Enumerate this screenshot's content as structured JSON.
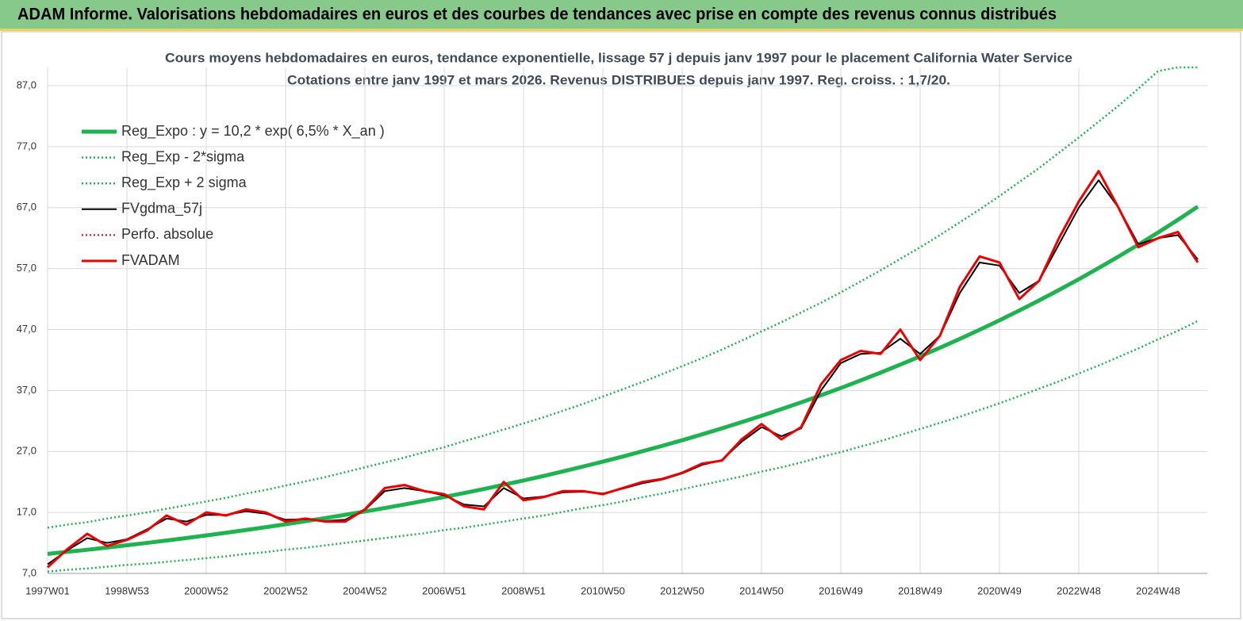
{
  "banner": {
    "title": "ADAM Informe. Valorisations hebdomadaires en euros et des courbes de tendances avec prise en compte des revenus connus distribués"
  },
  "chart_data": {
    "type": "line",
    "title": "Cours moyens hebdomadaires en euros, tendance exponentielle, lissage 57 j depuis janv 1997 pour le placement California Water Service",
    "subtitle": "Cotations entre janv 1997 et mars 2026. Revenus DISTRIBUES depuis janv 1997. Reg. croiss. : 1,7/20.",
    "categories": [
      "1997W01",
      null,
      null,
      null,
      "1998W53",
      null,
      null,
      null,
      "2000W52",
      null,
      null,
      null,
      "2002W52",
      null,
      null,
      null,
      "2004W52",
      null,
      null,
      null,
      "2006W51",
      null,
      null,
      null,
      "2008W51",
      null,
      null,
      null,
      "2010W50",
      null,
      null,
      null,
      "2012W50",
      null,
      null,
      null,
      "2014W50",
      null,
      null,
      null,
      "2016W49",
      null,
      null,
      null,
      "2018W49",
      null,
      null,
      null,
      "2020W49",
      null,
      null,
      null,
      "2022W48",
      null,
      null,
      null,
      "2024W48",
      null,
      null
    ],
    "ylim": [
      7,
      90
    ],
    "yticks": [
      {
        "value": 7,
        "label": "7,0"
      },
      {
        "value": 17,
        "label": "17,0"
      },
      {
        "value": 27,
        "label": "27,0"
      },
      {
        "value": 37,
        "label": "37,0"
      },
      {
        "value": 47,
        "label": "47,0"
      },
      {
        "value": 57,
        "label": "57,0"
      },
      {
        "value": 67,
        "label": "67,0"
      },
      {
        "value": 77,
        "label": "77,0"
      },
      {
        "value": 87,
        "label": "87,0"
      }
    ],
    "grid": true,
    "legend": "upper-left",
    "series": [
      {
        "name": "Reg_Expo : y = 10,2 * exp( 6,5% *  X_an )",
        "color": "#1db34f",
        "dash": "solid",
        "width": 5,
        "values": [
          10.2,
          10.54,
          10.88,
          11.24,
          11.62,
          12.0,
          12.4,
          12.81,
          13.23,
          13.67,
          14.12,
          14.58,
          15.07,
          15.56,
          16.08,
          16.61,
          17.16,
          17.72,
          18.31,
          18.91,
          19.54,
          20.18,
          20.85,
          21.54,
          22.25,
          22.98,
          23.74,
          24.53,
          25.34,
          26.17,
          27.04,
          27.93,
          28.85,
          29.81,
          30.79,
          31.81,
          32.86,
          33.94,
          35.06,
          36.22,
          37.42,
          38.65,
          39.93,
          41.25,
          42.61,
          44.02,
          45.47,
          46.97,
          48.52,
          50.13,
          51.78,
          53.49,
          55.26,
          57.09,
          58.97,
          60.92,
          62.93,
          65.01,
          67.16
        ]
      },
      {
        "name": "Reg_Exp - 2*sigma",
        "color": "#1db34f",
        "dash": "dotted",
        "width": 2.5,
        "values": [
          7.3,
          7.6,
          7.8,
          8.1,
          8.4,
          8.6,
          8.9,
          9.2,
          9.5,
          9.8,
          10.2,
          10.5,
          10.9,
          11.2,
          11.6,
          12.0,
          12.4,
          12.8,
          13.2,
          13.6,
          14.1,
          14.5,
          15.0,
          15.5,
          16.0,
          16.5,
          17.1,
          17.7,
          18.2,
          18.8,
          19.5,
          20.1,
          20.8,
          21.5,
          22.2,
          22.9,
          23.7,
          24.4,
          25.2,
          26.1,
          26.9,
          27.8,
          28.7,
          29.7,
          30.7,
          31.7,
          32.7,
          33.8,
          34.9,
          36.1,
          37.3,
          38.5,
          39.8,
          41.1,
          42.5,
          43.9,
          45.4,
          46.8,
          48.4
        ]
      },
      {
        "name": "Reg_Exp + 2 sigma",
        "color": "#1db34f",
        "dash": "dotted",
        "width": 2.5,
        "values": [
          14.5,
          15.0,
          15.4,
          16.0,
          16.5,
          17.0,
          17.6,
          18.2,
          18.8,
          19.4,
          20.1,
          20.7,
          21.4,
          22.1,
          22.8,
          23.6,
          24.4,
          25.2,
          26.0,
          26.9,
          27.7,
          28.7,
          29.6,
          30.6,
          31.6,
          32.6,
          33.7,
          34.8,
          36.0,
          37.2,
          38.4,
          39.7,
          41.0,
          42.3,
          43.7,
          45.2,
          46.7,
          48.2,
          49.8,
          51.4,
          53.1,
          54.9,
          56.7,
          58.6,
          60.5,
          62.5,
          64.6,
          66.7,
          68.9,
          71.2,
          73.5,
          76.0,
          78.5,
          81.1,
          83.7,
          86.5,
          89.4,
          90,
          90
        ]
      },
      {
        "name": "FVgdma_57j",
        "color": "#000000",
        "dash": "solid",
        "width": 2,
        "values": [
          8.5,
          10.8,
          12.8,
          12,
          12.6,
          14.2,
          16,
          15.5,
          16.6,
          16.6,
          17.2,
          16.8,
          15.8,
          15.9,
          15.6,
          15.8,
          17.4,
          20.5,
          21,
          20.5,
          19.8,
          18.3,
          18,
          21,
          19.3,
          19.6,
          20.3,
          20.4,
          20.1,
          20.9,
          21.8,
          22.4,
          23.4,
          24.8,
          25.6,
          28.6,
          31,
          29.5,
          30.8,
          37,
          41.5,
          43,
          43.2,
          45.5,
          43,
          46,
          53,
          58,
          57.5,
          53,
          55,
          61,
          67,
          71.5,
          67,
          61,
          62,
          62.5,
          58.5
        ]
      },
      {
        "name": "Perfo. absolue",
        "color": "#e00000",
        "dash": "dotted",
        "width": 2,
        "values": [
          null,
          null,
          null,
          null,
          null,
          null,
          null,
          null,
          null,
          null,
          null,
          null,
          null,
          null,
          null,
          null,
          null,
          null,
          null,
          null,
          null,
          null,
          null,
          null,
          null,
          null,
          null,
          null,
          null,
          null,
          null,
          null,
          null,
          null,
          null,
          null,
          null,
          null,
          null,
          null,
          null,
          null,
          null,
          null,
          null,
          null,
          null,
          null,
          null,
          null,
          null,
          null,
          null,
          null,
          null,
          null,
          null,
          null,
          null
        ]
      },
      {
        "name": "FVADAM",
        "color": "#ee0000",
        "dash": "solid",
        "width": 3,
        "values": [
          8,
          11,
          13.5,
          11.5,
          12.5,
          14,
          16.5,
          15,
          17,
          16.5,
          17.5,
          17,
          15.5,
          16,
          15.5,
          15.5,
          17.5,
          21,
          21.5,
          20.5,
          20,
          18,
          17.5,
          22,
          19,
          19.5,
          20.5,
          20.5,
          20,
          21,
          22,
          22.5,
          23.5,
          25,
          25.5,
          29,
          31.5,
          29,
          31,
          38,
          42,
          43.5,
          43,
          47,
          42,
          46,
          54,
          59,
          58,
          52,
          55,
          62,
          68,
          73,
          67,
          60.5,
          62,
          63,
          58
        ]
      }
    ]
  }
}
